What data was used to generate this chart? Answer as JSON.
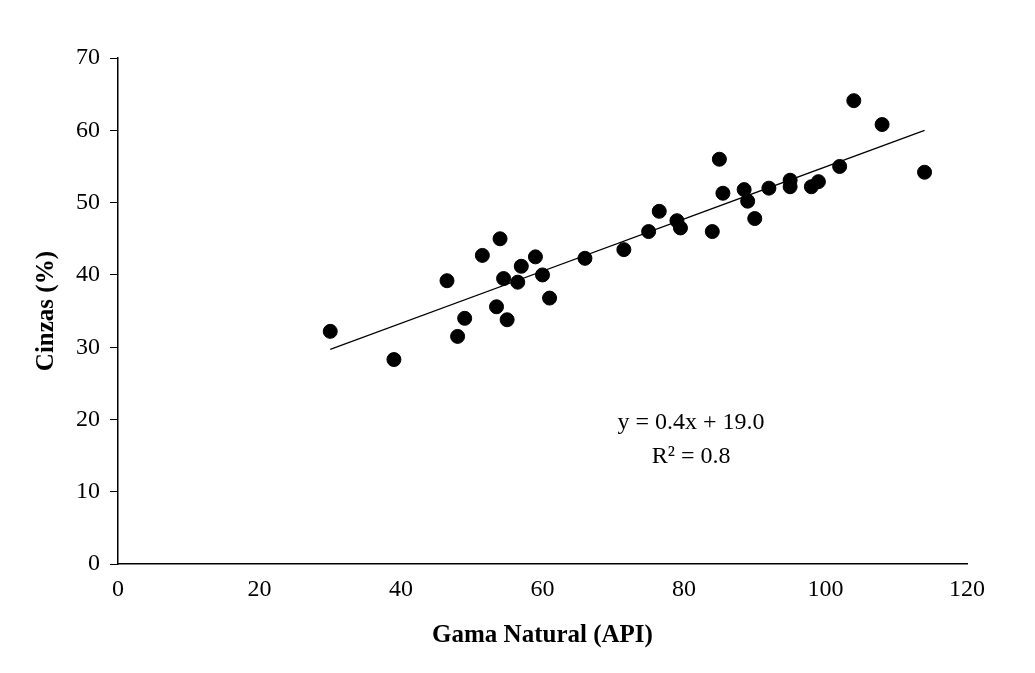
{
  "chart_data": {
    "type": "scatter",
    "xlabel": "Gama Natural (API)",
    "ylabel": "Cinzas (%)",
    "xlim": [
      0,
      120
    ],
    "ylim": [
      0,
      70
    ],
    "xticks": [
      0,
      20,
      40,
      60,
      80,
      100,
      120
    ],
    "yticks": [
      0,
      10,
      20,
      30,
      40,
      50,
      60,
      70
    ],
    "grid": false,
    "legend": false,
    "marker": "circle",
    "annotations": [
      "y = 0.4x + 19.0",
      "R² = 0.8"
    ],
    "series": [
      {
        "type": "scatter",
        "color": "#000000",
        "x": [
          30,
          39,
          46.5,
          48,
          49,
          51.5,
          53.5,
          54,
          54.5,
          55,
          56.5,
          57,
          59,
          60,
          61,
          66,
          71.5,
          75,
          76.5,
          79,
          79.5,
          84,
          85,
          85.5,
          88.5,
          89,
          90,
          92,
          95,
          95,
          98,
          99,
          102,
          104,
          108,
          114
        ],
        "values": [
          32.2,
          28.3,
          39.2,
          31.5,
          34,
          42.7,
          35.6,
          45,
          39.5,
          33.8,
          39,
          41.2,
          42.5,
          40,
          36.8,
          42.3,
          43.5,
          46,
          48.8,
          47.5,
          46.5,
          46,
          56,
          51.3,
          51.8,
          50.2,
          47.8,
          52,
          52.2,
          53.1,
          52.2,
          52.9,
          55,
          64.1,
          60.8,
          54.2
        ]
      },
      {
        "type": "line",
        "color": "#000000",
        "line_style": "solid",
        "marker": "none",
        "x": [
          30,
          114
        ],
        "values": [
          29.7,
          60
        ]
      }
    ]
  }
}
